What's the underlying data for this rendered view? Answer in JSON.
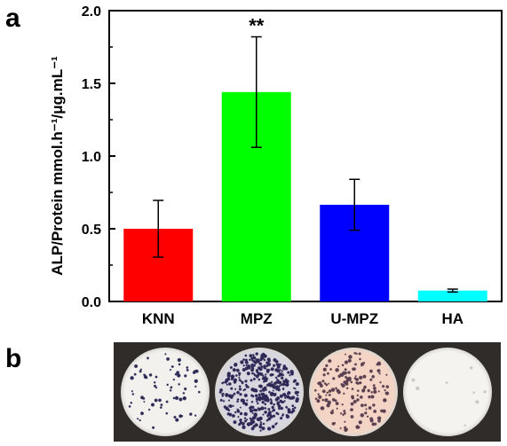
{
  "panels": {
    "a": "a",
    "b": "b"
  },
  "chart_data": {
    "type": "bar",
    "categories": [
      "KNN",
      "MPZ",
      "U-MPZ",
      "HA"
    ],
    "values": [
      0.5,
      1.44,
      0.665,
      0.075
    ],
    "errors": [
      0.195,
      0.38,
      0.175,
      0.01
    ],
    "colors": [
      "#ff0000",
      "#00ff00",
      "#0000ff",
      "#00ffff"
    ],
    "ylabel": "ALP/Protein mmol.h⁻¹/μg.mL⁻¹",
    "ylim": [
      0,
      2.0
    ],
    "yticks": [
      "0.0",
      "0.5",
      "1.0",
      "1.5",
      "2.0"
    ],
    "annotations": [
      {
        "category": "MPZ",
        "text": "**"
      }
    ],
    "grid": false
  },
  "photos": [
    {
      "sample": "KNN",
      "base": "#f2f1ee",
      "dots": "#2d2a55",
      "density": 70
    },
    {
      "sample": "MPZ",
      "base": "#d8d6df",
      "dots": "#2e2856",
      "density": 900
    },
    {
      "sample": "U-MPZ",
      "base": "#f4d4c4",
      "dots": "#5a4050",
      "density": 160
    },
    {
      "sample": "HA",
      "base": "#f4f3f0",
      "dots": "#c8c6c2",
      "density": 8
    }
  ]
}
